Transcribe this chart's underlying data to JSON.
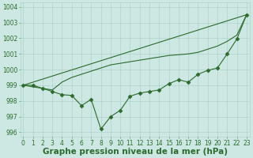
{
  "line1": {
    "x": [
      0,
      23
    ],
    "y": [
      999.0,
      1003.5
    ],
    "color": "#2d6a2d",
    "linewidth": 0.8,
    "marker": null
  },
  "line2": {
    "x": [
      0,
      3,
      4,
      5,
      6,
      7,
      8,
      9,
      10,
      11,
      12,
      13,
      14,
      15,
      16,
      17,
      18,
      19,
      20,
      21,
      22,
      23
    ],
    "y": [
      999.0,
      998.7,
      999.2,
      999.5,
      999.7,
      999.9,
      1000.1,
      1000.3,
      1000.4,
      1000.5,
      1000.6,
      1000.7,
      1000.8,
      1000.9,
      1000.95,
      1001.0,
      1001.1,
      1001.3,
      1001.5,
      1001.8,
      1002.2,
      1003.5
    ],
    "color": "#2d6a2d",
    "linewidth": 0.8,
    "marker": null
  },
  "line3": {
    "x": [
      0,
      1,
      2,
      3,
      4,
      5,
      6,
      7,
      8,
      9,
      10,
      11,
      12,
      13,
      14,
      15,
      16,
      17,
      18,
      19,
      20,
      21,
      22,
      23
    ],
    "y": [
      999.0,
      999.0,
      998.8,
      998.6,
      998.4,
      998.35,
      997.7,
      998.1,
      996.2,
      997.0,
      997.4,
      998.3,
      998.5,
      998.6,
      998.7,
      999.1,
      999.35,
      999.2,
      999.7,
      999.95,
      1000.1,
      1001.0,
      1001.95,
      1003.5
    ],
    "color": "#2d6a2d",
    "linewidth": 0.8,
    "marker": "D",
    "markersize": 2.5
  },
  "ylim": [
    995.7,
    1004.3
  ],
  "xlim": [
    -0.3,
    23.3
  ],
  "yticks": [
    996,
    997,
    998,
    999,
    1000,
    1001,
    1002,
    1003,
    1004
  ],
  "xticks": [
    0,
    1,
    2,
    3,
    4,
    5,
    6,
    7,
    8,
    9,
    10,
    11,
    12,
    13,
    14,
    15,
    16,
    17,
    18,
    19,
    20,
    21,
    22,
    23
  ],
  "xlabel": "Graphe pression niveau de la mer (hPa)",
  "bg_color": "#cde8e2",
  "grid_color": "#a8ccc6",
  "line_color": "#2d6a2d",
  "text_color": "#2d6a2d",
  "tick_fontsize": 5.5,
  "xlabel_fontsize": 7.5
}
